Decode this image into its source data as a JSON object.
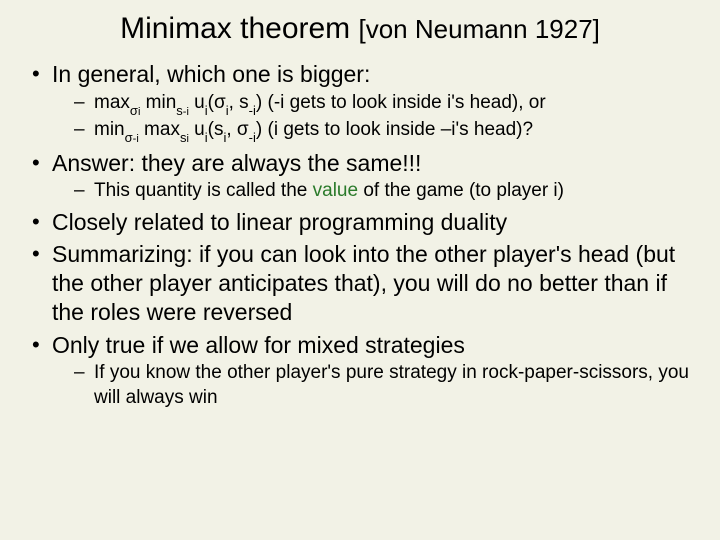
{
  "title": {
    "main": "Minimax theorem ",
    "cite": "[von Neumann 1927]"
  },
  "b1": "In general, which one is bigger:",
  "b1s1": {
    "t1": "max",
    "sub1": "σ",
    "sub1b": "i",
    "t2": " min",
    "sub2": "s",
    "sub2b": "-i",
    "t3": " u",
    "sub3": "i",
    "t4": "(σ",
    "sub4": "i",
    "t5": ", s",
    "sub5": "-i",
    "t6": ") (-i gets to look inside i's head), or"
  },
  "b1s2": {
    "t1": "min",
    "sub1": "σ",
    "sub1b": "-i",
    "t2": " max",
    "sub2": "s",
    "sub2b": "i",
    "t3": " u",
    "sub3": "i",
    "t4": "(s",
    "sub4": "i",
    "t5": ", σ",
    "sub5": "-i",
    "t6": ") (i gets to look inside –i's head)?"
  },
  "b2": "Answer: they are always the same!!!",
  "b2s1": {
    "pre": "This quantity is called the ",
    "val": "value",
    "post": " of the game (to player i)"
  },
  "b3": "Closely related to linear programming duality",
  "b4": "Summarizing: if you can look into the other player's head (but the other player anticipates that), you will do no better than if the roles were reversed",
  "b5": "Only true if we allow for mixed strategies",
  "b5s1": "If you know the other player's pure strategy in rock-paper-scissors, you will always win"
}
